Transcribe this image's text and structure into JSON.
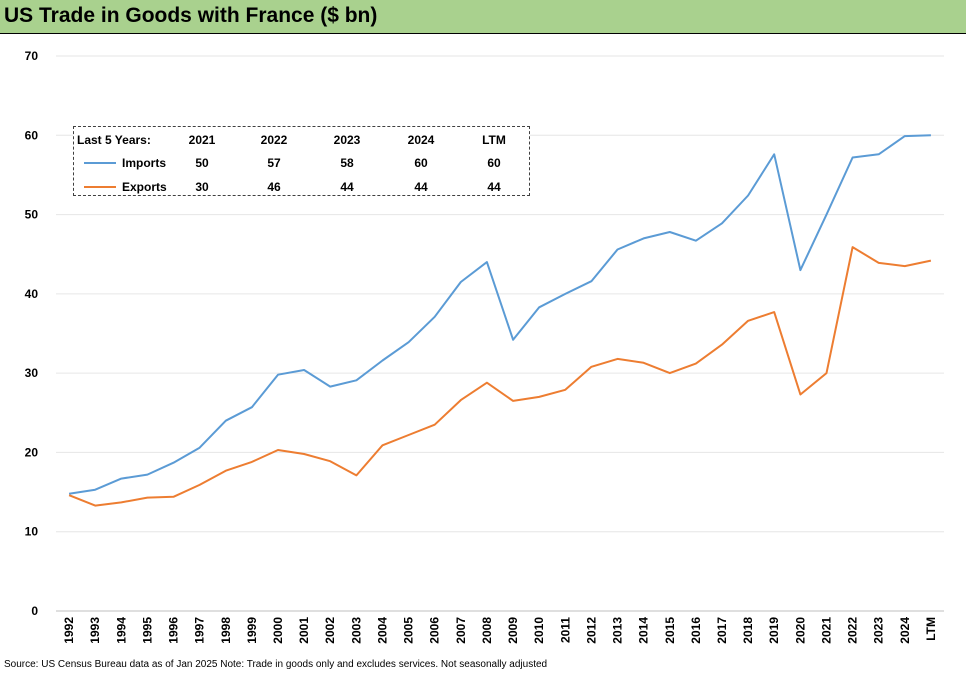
{
  "title": "US Trade in Goods with France ($ bn)",
  "source_note": "Source: US Census Bureau data as of Jan 2025 Note: Trade in goods only and excludes services. Not seasonally adjusted",
  "colors": {
    "title_bg": "#a9d18e",
    "imports": "#5b9bd5",
    "exports": "#ed7d31",
    "grid": "#e6e6e6"
  },
  "legend_table": {
    "header": "Last 5 Years:",
    "columns": [
      "2021",
      "2022",
      "2023",
      "2024",
      "LTM"
    ],
    "rows": [
      {
        "name": "Imports",
        "values": [
          "50",
          "57",
          "58",
          "60",
          "60"
        ]
      },
      {
        "name": "Exports",
        "values": [
          "30",
          "46",
          "44",
          "44",
          "44"
        ]
      }
    ]
  },
  "chart_data": {
    "type": "line",
    "title": "US Trade in Goods with France ($ bn)",
    "x": [
      "1992",
      "1993",
      "1994",
      "1995",
      "1996",
      "1997",
      "1998",
      "1999",
      "2000",
      "2001",
      "2002",
      "2003",
      "2004",
      "2005",
      "2006",
      "2007",
      "2008",
      "2009",
      "2010",
      "2011",
      "2012",
      "2013",
      "2014",
      "2015",
      "2016",
      "2017",
      "2018",
      "2019",
      "2020",
      "2021",
      "2022",
      "2023",
      "2024",
      "LTM"
    ],
    "ylim": [
      0,
      70
    ],
    "yticks": [
      0,
      10,
      20,
      30,
      40,
      50,
      60,
      70
    ],
    "grid": "horizontal",
    "legend": "top-left",
    "series": [
      {
        "name": "Imports",
        "color": "#5b9bd5",
        "values": [
          14.8,
          15.3,
          16.7,
          17.2,
          18.7,
          20.6,
          24.0,
          25.7,
          29.8,
          30.4,
          28.3,
          29.1,
          31.6,
          33.9,
          37.1,
          41.5,
          44.0,
          34.2,
          38.3,
          40.0,
          41.6,
          45.6,
          47.0,
          47.8,
          46.7,
          48.9,
          52.4,
          57.6,
          43.0,
          50.0,
          57.2,
          57.6,
          59.9,
          60.0
        ]
      },
      {
        "name": "Exports",
        "color": "#ed7d31",
        "values": [
          14.6,
          13.3,
          13.7,
          14.3,
          14.4,
          15.9,
          17.7,
          18.8,
          20.3,
          19.8,
          18.9,
          17.1,
          20.9,
          22.2,
          23.5,
          26.6,
          28.8,
          26.5,
          27.0,
          27.9,
          30.8,
          31.8,
          31.3,
          30.0,
          31.2,
          33.6,
          36.6,
          37.7,
          27.3,
          30.0,
          45.9,
          43.9,
          43.5,
          44.2
        ]
      }
    ]
  }
}
